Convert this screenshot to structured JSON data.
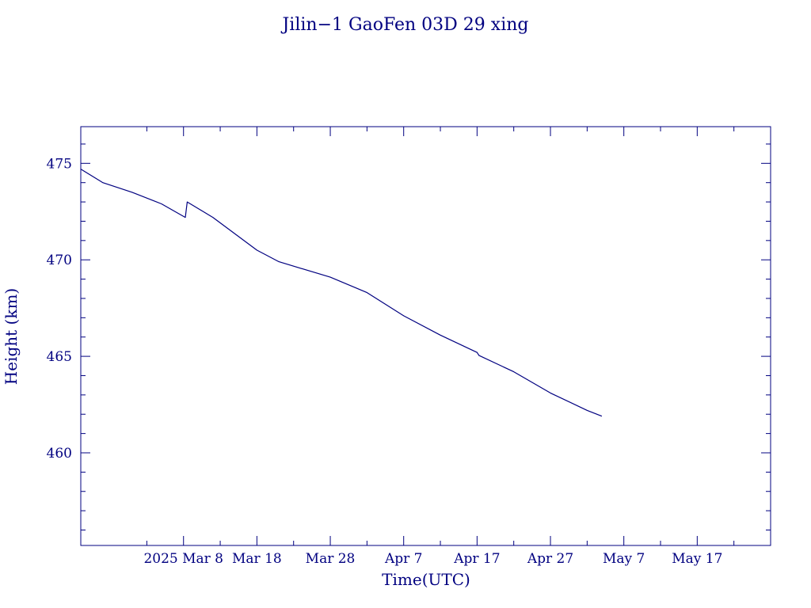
{
  "colors": {
    "ink": "#000080",
    "background": "#ffffff"
  },
  "chart_data": {
    "type": "line",
    "title": "Jilin−1 GaoFen 03D 29 xing",
    "xlabel": "Time(UTC)",
    "ylabel": "Height (km)",
    "x_is_date": true,
    "xlim": [
      "2025-02-22",
      "2025-05-27"
    ],
    "ylim": [
      455.2,
      476.9
    ],
    "x_ticks": [
      {
        "date": "2025-03-08",
        "label": "2025 Mar  8"
      },
      {
        "date": "2025-03-18",
        "label": "Mar 18"
      },
      {
        "date": "2025-03-28",
        "label": "Mar 28"
      },
      {
        "date": "2025-04-07",
        "label": "Apr  7"
      },
      {
        "date": "2025-04-17",
        "label": "Apr 17"
      },
      {
        "date": "2025-04-27",
        "label": "Apr 27"
      },
      {
        "date": "2025-05-07",
        "label": "May  7"
      },
      {
        "date": "2025-05-17",
        "label": "May 17"
      }
    ],
    "x_minor_ticks": [
      "2025-03-03",
      "2025-03-13",
      "2025-03-23",
      "2025-04-02",
      "2025-04-12",
      "2025-04-22",
      "2025-05-02",
      "2025-05-12",
      "2025-05-22"
    ],
    "y_ticks": [
      460,
      465,
      470,
      475
    ],
    "y_minor_step": 1,
    "grid": false,
    "legend": "none",
    "series": [
      {
        "x": [
          "2025-02-22",
          "2025-02-25",
          "2025-03-01",
          "2025-03-05",
          "2025-03-08 06:00",
          "2025-03-08 12:00",
          "2025-03-12",
          "2025-03-18",
          "2025-03-21",
          "2025-03-28",
          "2025-04-02",
          "2025-04-07",
          "2025-04-12",
          "2025-04-17",
          "2025-04-17 06:00",
          "2025-04-22",
          "2025-04-27",
          "2025-05-02",
          "2025-05-04"
        ],
        "y": [
          474.7,
          474.0,
          473.5,
          472.9,
          472.2,
          473.0,
          472.2,
          470.5,
          469.9,
          469.1,
          468.3,
          467.1,
          466.1,
          465.2,
          465.05,
          464.2,
          463.1,
          462.2,
          461.9
        ]
      }
    ]
  }
}
